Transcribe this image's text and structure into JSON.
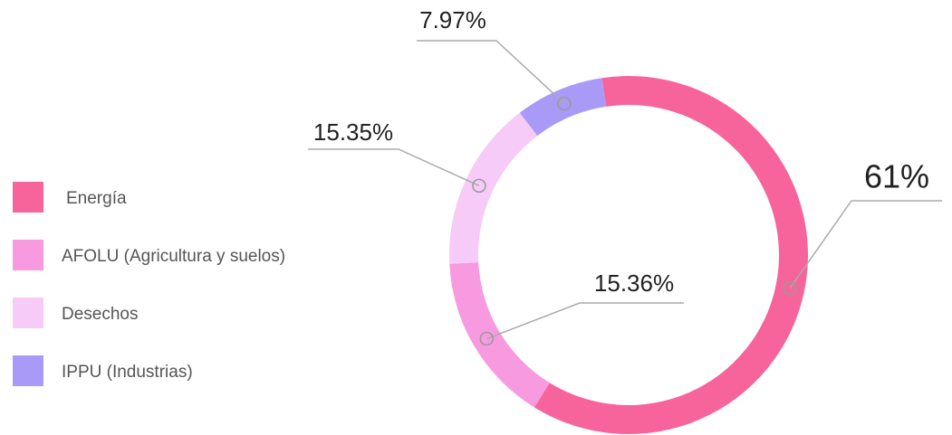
{
  "chart_data": {
    "type": "donut",
    "categories": [
      "Energía",
      "AFOLU (Agricultura y suelos)",
      "Desechos",
      "IPPU (Industrias)"
    ],
    "values": [
      61,
      15.36,
      15.35,
      7.97
    ],
    "value_labels": [
      "61%",
      "15.36%",
      "15.35%",
      "7.97%"
    ],
    "colors": [
      "#f7649b",
      "#f79ae0",
      "#f7cbf7",
      "#a99af8"
    ],
    "legend": "left"
  }
}
